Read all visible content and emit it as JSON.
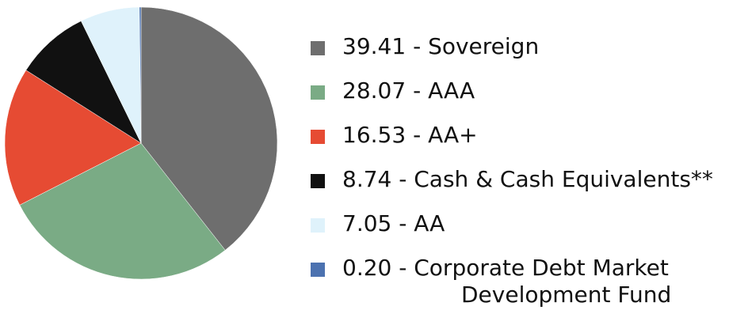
{
  "chart_data": {
    "type": "pie",
    "slices": [
      {
        "value": 39.41,
        "value_text": "39.41",
        "label": "Sovereign",
        "color": "#6e6e6e"
      },
      {
        "value": 28.07,
        "value_text": "28.07",
        "label": "AAA",
        "color": "#7aab85"
      },
      {
        "value": 16.53,
        "value_text": "16.53",
        "label": "AA+",
        "color": "#e64b33"
      },
      {
        "value": 8.74,
        "value_text": "8.74",
        "label": "Cash & Cash Equivalents**",
        "color": "#111111"
      },
      {
        "value": 7.05,
        "value_text": "7.05",
        "label": "AA",
        "color": "#dff2fb"
      },
      {
        "value": 0.2,
        "value_text": "0.20",
        "label": "Corporate Debt Market",
        "label_line2": "Development Fund",
        "color": "#4c72b0"
      }
    ],
    "separator": " - ",
    "legend_position": "right",
    "start_angle": "12 o'clock",
    "direction": "clockwise"
  }
}
